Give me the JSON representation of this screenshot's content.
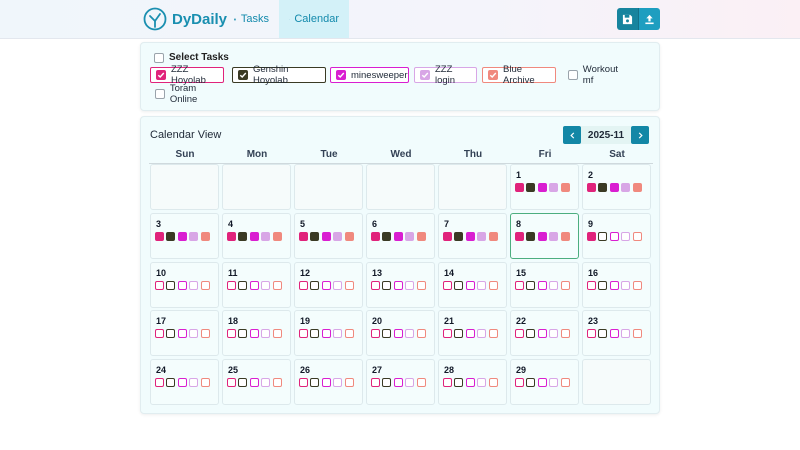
{
  "header": {
    "brand": "DyDaily",
    "nav": [
      {
        "label": "Tasks",
        "icon": "checkbox-icon"
      },
      {
        "label": "Calendar",
        "icon": "calendar-icon",
        "active": true
      }
    ],
    "actions": [
      {
        "icon": "save-icon"
      },
      {
        "icon": "upload-icon"
      }
    ]
  },
  "select": {
    "title": "Select Tasks",
    "tasks": [
      {
        "label": "ZZZ Hoyolab",
        "checked": true,
        "color": "#e0237b"
      },
      {
        "label": "Genshin Hoyolab",
        "checked": true,
        "color": "#3a3a24"
      },
      {
        "label": "minesweeper",
        "checked": true,
        "color": "#d91ed1"
      },
      {
        "label": "ZZZ login",
        "checked": true,
        "color": "#d8a6e6"
      },
      {
        "label": "Blue Archive",
        "checked": true,
        "color": "#f0897e"
      },
      {
        "label": "Workout mf",
        "checked": false
      },
      {
        "label": "Toram Online",
        "checked": false
      }
    ]
  },
  "calendar": {
    "title": "Calendar View",
    "month": "2025-11",
    "weekdays": [
      "Sun",
      "Mon",
      "Tue",
      "Wed",
      "Thu",
      "Fri",
      "Sat"
    ],
    "task_colors": [
      "#e0237b",
      "#3a3a24",
      "#d91ed1",
      "#d8a6e6",
      "#f0897e"
    ],
    "start_weekday": 5,
    "today": 8,
    "days": [
      {
        "day": 1,
        "done": [
          true,
          true,
          true,
          true,
          true
        ]
      },
      {
        "day": 2,
        "done": [
          true,
          true,
          true,
          true,
          true
        ]
      },
      {
        "day": 3,
        "done": [
          true,
          true,
          true,
          true,
          true
        ]
      },
      {
        "day": 4,
        "done": [
          true,
          true,
          true,
          true,
          true
        ]
      },
      {
        "day": 5,
        "done": [
          true,
          true,
          true,
          true,
          true
        ]
      },
      {
        "day": 6,
        "done": [
          true,
          true,
          true,
          true,
          true
        ]
      },
      {
        "day": 7,
        "done": [
          true,
          true,
          true,
          true,
          true
        ]
      },
      {
        "day": 8,
        "done": [
          true,
          true,
          true,
          true,
          true
        ]
      },
      {
        "day": 9,
        "done": [
          true,
          false,
          false,
          false,
          false
        ]
      },
      {
        "day": 10,
        "done": [
          false,
          false,
          false,
          false,
          false
        ]
      },
      {
        "day": 11,
        "done": [
          false,
          false,
          false,
          false,
          false
        ]
      },
      {
        "day": 12,
        "done": [
          false,
          false,
          false,
          false,
          false
        ]
      },
      {
        "day": 13,
        "done": [
          false,
          false,
          false,
          false,
          false
        ]
      },
      {
        "day": 14,
        "done": [
          false,
          false,
          false,
          false,
          false
        ]
      },
      {
        "day": 15,
        "done": [
          false,
          false,
          false,
          false,
          false
        ]
      },
      {
        "day": 16,
        "done": [
          false,
          false,
          false,
          false,
          false
        ]
      },
      {
        "day": 17,
        "done": [
          false,
          false,
          false,
          false,
          false
        ]
      },
      {
        "day": 18,
        "done": [
          false,
          false,
          false,
          false,
          false
        ]
      },
      {
        "day": 19,
        "done": [
          false,
          false,
          false,
          false,
          false
        ]
      },
      {
        "day": 20,
        "done": [
          false,
          false,
          false,
          false,
          false
        ]
      },
      {
        "day": 21,
        "done": [
          false,
          false,
          false,
          false,
          false
        ]
      },
      {
        "day": 22,
        "done": [
          false,
          false,
          false,
          false,
          false
        ]
      },
      {
        "day": 23,
        "done": [
          false,
          false,
          false,
          false,
          false
        ]
      },
      {
        "day": 24,
        "done": [
          false,
          false,
          false,
          false,
          false
        ]
      },
      {
        "day": 25,
        "done": [
          false,
          false,
          false,
          false,
          false
        ]
      },
      {
        "day": 26,
        "done": [
          false,
          false,
          false,
          false,
          false
        ]
      },
      {
        "day": 27,
        "done": [
          false,
          false,
          false,
          false,
          false
        ]
      },
      {
        "day": 28,
        "done": [
          false,
          false,
          false,
          false,
          false
        ]
      },
      {
        "day": 29,
        "done": [
          false,
          false,
          false,
          false,
          false
        ]
      }
    ]
  }
}
